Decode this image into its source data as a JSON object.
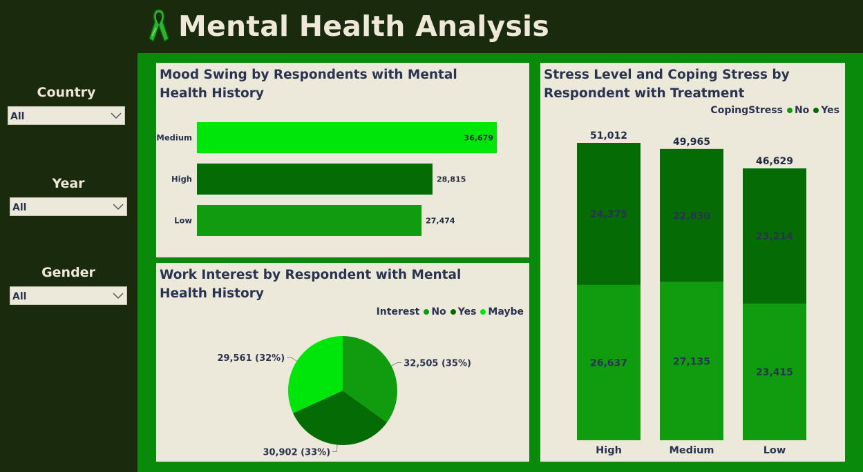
{
  "page": {
    "title": "Mental Health Analysis"
  },
  "filters": {
    "country": {
      "label": "Country",
      "value": "All"
    },
    "year": {
      "label": "Year",
      "value": "All"
    },
    "gender": {
      "label": "Gender",
      "value": "All"
    }
  },
  "colors": {
    "bright": "#00e60a",
    "dark": "#056b05",
    "mid": "#0f9c0f"
  },
  "chart_data": [
    {
      "type": "bar",
      "title": "Mood Swing by Respondents with Mental Health History",
      "orientation": "horizontal",
      "categories": [
        "Medium",
        "High",
        "Low"
      ],
      "values": [
        36679,
        28815,
        27474
      ],
      "value_labels": [
        "36,679",
        "28,815",
        "27,474"
      ],
      "colors": [
        "#00e60a",
        "#056b05",
        "#0f9c0f"
      ]
    },
    {
      "type": "pie",
      "title": "Work Interest by Respondent with Mental Health History",
      "legend_title": "Interest",
      "categories": [
        "No",
        "Yes",
        "Maybe"
      ],
      "values": [
        32505,
        30902,
        29561
      ],
      "labels": [
        "32,505 (35%)",
        "30,902 (33%)",
        "29,561 (32%)"
      ],
      "colors": [
        "#0f9c0f",
        "#056b05",
        "#00e60a"
      ]
    },
    {
      "type": "bar",
      "stacked": true,
      "title": "Stress Level and Coping Stress by Respondent with Treatment",
      "legend_title": "CopingStress",
      "categories": [
        "High",
        "Medium",
        "Low"
      ],
      "series": [
        {
          "name": "No",
          "values": [
            26637,
            27135,
            23415
          ],
          "labels": [
            "26,637",
            "27,135",
            "23,415"
          ],
          "color": "#0f9c0f"
        },
        {
          "name": "Yes",
          "values": [
            24375,
            22830,
            23214
          ],
          "labels": [
            "24,375",
            "22,830",
            "23,214"
          ],
          "color": "#056b05"
        }
      ],
      "totals": [
        51012,
        49965,
        46629
      ],
      "total_labels": [
        "51,012",
        "49,965",
        "46,629"
      ]
    }
  ]
}
